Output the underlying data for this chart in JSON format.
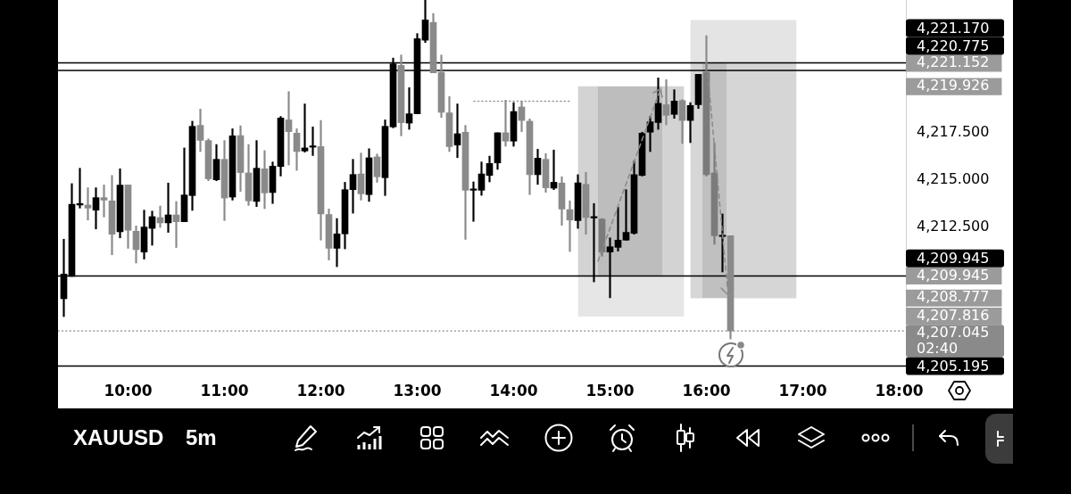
{
  "chart_data": {
    "type": "candlestick",
    "title": "XAUUSD",
    "subtitle": "5m",
    "x": [
      9.3333,
      9.4167,
      9.5,
      9.5833,
      9.6667,
      9.75,
      9.8333,
      9.9167,
      10,
      10.0833,
      10.1667,
      10.25,
      10.3333,
      10.4167,
      10.5,
      10.5833,
      10.6667,
      10.75,
      10.8333,
      10.9167,
      11,
      11.0833,
      11.1667,
      11.25,
      11.3333,
      11.4167,
      11.5,
      11.5833,
      11.6667,
      11.75,
      11.8333,
      11.9167,
      12,
      12.0833,
      12.1667,
      12.25,
      12.3333,
      12.4167,
      12.5,
      12.5833,
      12.6667,
      12.75,
      12.8333,
      12.9167,
      13,
      13.0833,
      13.1667,
      13.25,
      13.3333,
      13.4167,
      13.5,
      13.5833,
      13.6667,
      13.75,
      13.8333,
      13.9167,
      14,
      14.0833,
      14.1667,
      14.25,
      14.3333,
      14.4167,
      14.5,
      14.5833,
      14.6667,
      14.75,
      14.8333,
      14.9167,
      15,
      15.0833,
      15.1667,
      15.25,
      15.3333,
      15.4167,
      15.5,
      15.5833,
      15.6667,
      15.75,
      15.8333,
      15.9167,
      16,
      16.0833,
      16.1667,
      16.25
    ],
    "ohlc": [
      [
        4208.74,
        4211.88,
        4207.8,
        4210.04
      ],
      [
        4209.92,
        4214.81,
        4209.92,
        4213.72
      ],
      [
        4213.68,
        4215.62,
        4213.52,
        4213.76
      ],
      [
        4213.68,
        4214.59,
        4212.89,
        4213.52
      ],
      [
        4213.41,
        4214.59,
        4212.42,
        4214.07
      ],
      [
        4214.07,
        4214.74,
        4213.05,
        4213.94
      ],
      [
        4213.9,
        4215.24,
        4211.06,
        4212.14
      ],
      [
        4212.27,
        4215.59,
        4211.95,
        4214.73
      ],
      [
        4214.74,
        4214.74,
        4211.4,
        4212.35
      ],
      [
        4212.3,
        4212.58,
        4210.62,
        4211.33
      ],
      [
        4211.2,
        4213.41,
        4210.83,
        4212.52
      ],
      [
        4212.45,
        4213.36,
        4211.56,
        4213.07
      ],
      [
        4213.02,
        4213.63,
        4212.5,
        4212.74
      ],
      [
        4212.74,
        4214.84,
        4212.24,
        4213.16
      ],
      [
        4213.16,
        4213.87,
        4211.44,
        4212.8
      ],
      [
        4212.8,
        4216.69,
        4212.8,
        4214.21
      ],
      [
        4214.18,
        4218.1,
        4213.4,
        4217.83
      ],
      [
        4217.88,
        4218.74,
        4216.5,
        4217.09
      ],
      [
        4217.08,
        4217.17,
        4214.96,
        4215.06
      ],
      [
        4215.01,
        4216.87,
        4214.96,
        4216.09
      ],
      [
        4216.09,
        4217.08,
        4212.86,
        4214.05
      ],
      [
        4214.1,
        4217.7,
        4213.94,
        4217.33
      ],
      [
        4217.34,
        4217.86,
        4214.4,
        4215.39
      ],
      [
        4215.37,
        4216.87,
        4213.66,
        4213.9
      ],
      [
        4213.87,
        4217.08,
        4213.6,
        4215.62
      ],
      [
        4215.59,
        4216.55,
        4213.49,
        4214.32
      ],
      [
        4214.34,
        4215.95,
        4213.76,
        4215.73
      ],
      [
        4215.71,
        4218.35,
        4215.21,
        4218.27
      ],
      [
        4218.17,
        4219.66,
        4215.79,
        4217.55
      ],
      [
        4217.47,
        4217.7,
        4215.51,
        4216.5
      ],
      [
        4216.53,
        4219.01,
        4216.47,
        4216.69
      ],
      [
        4216.73,
        4217.8,
        4216.29,
        4216.8
      ],
      [
        4216.76,
        4218.14,
        4211.83,
        4213.21
      ],
      [
        4213.18,
        4213.47,
        4210.78,
        4211.4
      ],
      [
        4211.4,
        4212.97,
        4210.43,
        4212.16
      ],
      [
        4212.16,
        4214.88,
        4211.37,
        4214.49
      ],
      [
        4214.49,
        4216.09,
        4213.25,
        4215.29
      ],
      [
        4215.32,
        4216.42,
        4213.94,
        4214.27
      ],
      [
        4214.23,
        4216.65,
        4213.87,
        4216.17
      ],
      [
        4216.22,
        4216.37,
        4214.88,
        4215.17
      ],
      [
        4215.12,
        4218.17,
        4214.18,
        4217.83
      ],
      [
        4217.8,
        4221.43,
        4217.75,
        4221.12
      ],
      [
        4221.04,
        4221.59,
        4217.33,
        4218.02
      ],
      [
        4218,
        4219.87,
        4217.67,
        4218.49
      ],
      [
        4218.49,
        4222.72,
        4218.49,
        4222.45
      ],
      [
        4222.37,
        4224.49,
        4222.25,
        4223.44
      ],
      [
        4223.31,
        4223.78,
        4220.65,
        4220.65
      ],
      [
        4220.68,
        4221.59,
        4218.3,
        4218.57
      ],
      [
        4218.54,
        4219.4,
        4216.5,
        4216.76
      ],
      [
        4216.84,
        4219.01,
        4216.18,
        4217.44
      ],
      [
        4217.52,
        4217.88,
        4211.87,
        4214.46
      ],
      [
        4214.46,
        4214.9,
        4212.82,
        4214.51
      ],
      [
        4214.46,
        4215.95,
        4214.19,
        4215.32
      ],
      [
        4215.24,
        4216.26,
        4214.9,
        4215.87
      ],
      [
        4215.9,
        4217.49,
        4215.56,
        4217.49
      ],
      [
        4217.49,
        4219.21,
        4216.78,
        4217.05
      ],
      [
        4217.05,
        4219.08,
        4216.78,
        4218.61
      ],
      [
        4218.85,
        4219.16,
        4217.55,
        4218.14
      ],
      [
        4218.1,
        4218.22,
        4214.23,
        4215.28
      ],
      [
        4215.28,
        4216.62,
        4214.77,
        4216.15
      ],
      [
        4216.09,
        4216.39,
        4214.35,
        4214.59
      ],
      [
        4214.57,
        4216.58,
        4214.49,
        4214.88
      ],
      [
        4214.84,
        4215.17,
        4212.61,
        4213.47
      ],
      [
        4213.44,
        4213.9,
        4211.23,
        4212.89
      ],
      [
        4212.86,
        4215.28,
        4212.45,
        4214.85
      ],
      [
        4214.77,
        4215.4,
        4212.14,
        4213.02
      ],
      [
        4213,
        4213.76,
        4209.63,
        4213.05
      ],
      [
        4212.94,
        4212.97,
        4210.98,
        4211.2
      ],
      [
        4211.2,
        4211.95,
        4208.79,
        4211.48
      ],
      [
        4211.45,
        4213.57,
        4211.25,
        4211.83
      ],
      [
        4211.83,
        4214.49,
        4211.83,
        4212.24
      ],
      [
        4212.19,
        4216,
        4212.14,
        4215.28
      ],
      [
        4215.24,
        4217.52,
        4215.21,
        4217.47
      ],
      [
        4217.52,
        4218.35,
        4216.5,
        4218.07
      ],
      [
        4218.03,
        4220.38,
        4217.67,
        4219.04
      ],
      [
        4218.97,
        4220.29,
        4217.91,
        4218.41
      ],
      [
        4218.46,
        4219.76,
        4218.25,
        4219.16
      ],
      [
        4219.19,
        4219.24,
        4216.92,
        4218.14
      ],
      [
        4218.14,
        4219.08,
        4216.97,
        4218.93
      ],
      [
        4218.97,
        4220.57,
        4218.77,
        4220.57
      ],
      [
        4220.68,
        4222.61,
        4215.21,
        4215.28
      ],
      [
        4215.37,
        4216.94,
        4211.61,
        4212.06
      ],
      [
        4212.02,
        4213.21,
        4210.15,
        4212.06
      ],
      [
        4212.06,
        4212.06,
        4206.62,
        4207.045
      ]
    ],
    "colors": [
      "#000000",
      "#000000",
      "#000000",
      "#8a8a8a",
      "#000000",
      "#8a8a8a",
      "#8a8a8a",
      "#000000",
      "#8a8a8a",
      "#8a8a8a",
      "#000000",
      "#000000",
      "#8a8a8a",
      "#000000",
      "#8a8a8a",
      "#000000",
      "#000000",
      "#8a8a8a",
      "#8a8a8a",
      "#000000",
      "#8a8a8a",
      "#000000",
      "#8a8a8a",
      "#8a8a8a",
      "#000000",
      "#8a8a8a",
      "#000000",
      "#000000",
      "#8a8a8a",
      "#8a8a8a",
      "#000000",
      "#000000",
      "#8a8a8a",
      "#8a8a8a",
      "#000000",
      "#000000",
      "#000000",
      "#8a8a8a",
      "#000000",
      "#8a8a8a",
      "#000000",
      "#000000",
      "#8a8a8a",
      "#000000",
      "#000000",
      "#000000",
      "#8a8a8a",
      "#8a8a8a",
      "#8a8a8a",
      "#000000",
      "#8a8a8a",
      "#000000",
      "#000000",
      "#000000",
      "#000000",
      "#8a8a8a",
      "#000000",
      "#8a8a8a",
      "#8a8a8a",
      "#000000",
      "#8a8a8a",
      "#000000",
      "#8a8a8a",
      "#8a8a8a",
      "#000000",
      "#8a8a8a",
      "#000000",
      "#8a8a8a",
      "#000000",
      "#000000",
      "#000000",
      "#000000",
      "#000000",
      "#000000",
      "#000000",
      "#8a8a8a",
      "#000000",
      "#8a8a8a",
      "#000000",
      "#000000",
      "#8a8a8a",
      "#8a8a8a",
      "#000000",
      "#8a8a8a"
    ],
    "series": [
      {
        "type": "bar",
        "x": [
          15.218,
          16.384
        ],
        "base": [
          4209.945,
          4208.777
        ],
        "values": [
          9.981,
          12.375
        ],
        "colors": [
          "#d3d3d3",
          "#d6d6d6"
        ]
      },
      {
        "type": "bar",
        "x": [
          15.218,
          16.384
        ],
        "base": [
          4207.816,
          4221.152
        ],
        "values": [
          2.129,
          2.26
        ],
        "colors": [
          "#e6e6e6",
          "#e4e4e4"
        ]
      },
      {
        "type": "line",
        "x": [
          13.588,
          14.597
        ],
        "values": [
          4219.16,
          4219.16
        ],
        "color": "#9a9a9a",
        "line_style": "dotted"
      }
    ],
    "xlim": [
      9.27315,
      18.06945
    ],
    "xticks": [
      {
        "value": 10,
        "label": "10:00"
      },
      {
        "value": 11,
        "label": "11:00"
      },
      {
        "value": 12,
        "label": "12:00"
      },
      {
        "value": 13,
        "label": "13:00"
      },
      {
        "value": 14,
        "label": "14:00"
      },
      {
        "value": 15,
        "label": "15:00"
      },
      {
        "value": 16,
        "label": "16:00"
      },
      {
        "value": 17,
        "label": "17:00"
      },
      {
        "value": 18,
        "label": "18:00"
      }
    ],
    "ylim": [
      4204.98,
      4224.49
    ],
    "yticks": [
      {
        "value": 4212.5,
        "label": "4,212.500"
      },
      {
        "value": 4215,
        "label": "4,215.000"
      },
      {
        "value": 4217.5,
        "label": "4,217.500"
      }
    ],
    "y2lim": [
      4204.98,
      4224.49
    ],
    "y2ticks": [
      {
        "value": 4207.816,
        "label": "4,207.816"
      },
      {
        "value": 4208.777,
        "label": "4,208.777"
      },
      {
        "value": 4209.945,
        "label": "4,209.945"
      },
      {
        "value": 4219.926,
        "label": "4,219.926"
      },
      {
        "value": 4221.152,
        "label": "4,221.152"
      }
    ],
    "ref_lines": [
      {
        "axis": "y",
        "value": 4221.17,
        "label": "4,221.170",
        "color": "#000000"
      },
      {
        "axis": "y",
        "value": 4220.775,
        "label": "4,220.775",
        "color": "#000000"
      },
      {
        "axis": "y",
        "value": 4209.945,
        "label": "4,209.945",
        "color": "#000000"
      },
      {
        "axis": "y",
        "value": 4207.045,
        "label": "4,207.045\n02:40",
        "color": "#8a8a8a",
        "line_style": "dotted"
      },
      {
        "axis": "y",
        "value": 4205.195,
        "label": "4,205.195",
        "color": "#000000"
      }
    ]
  }
}
